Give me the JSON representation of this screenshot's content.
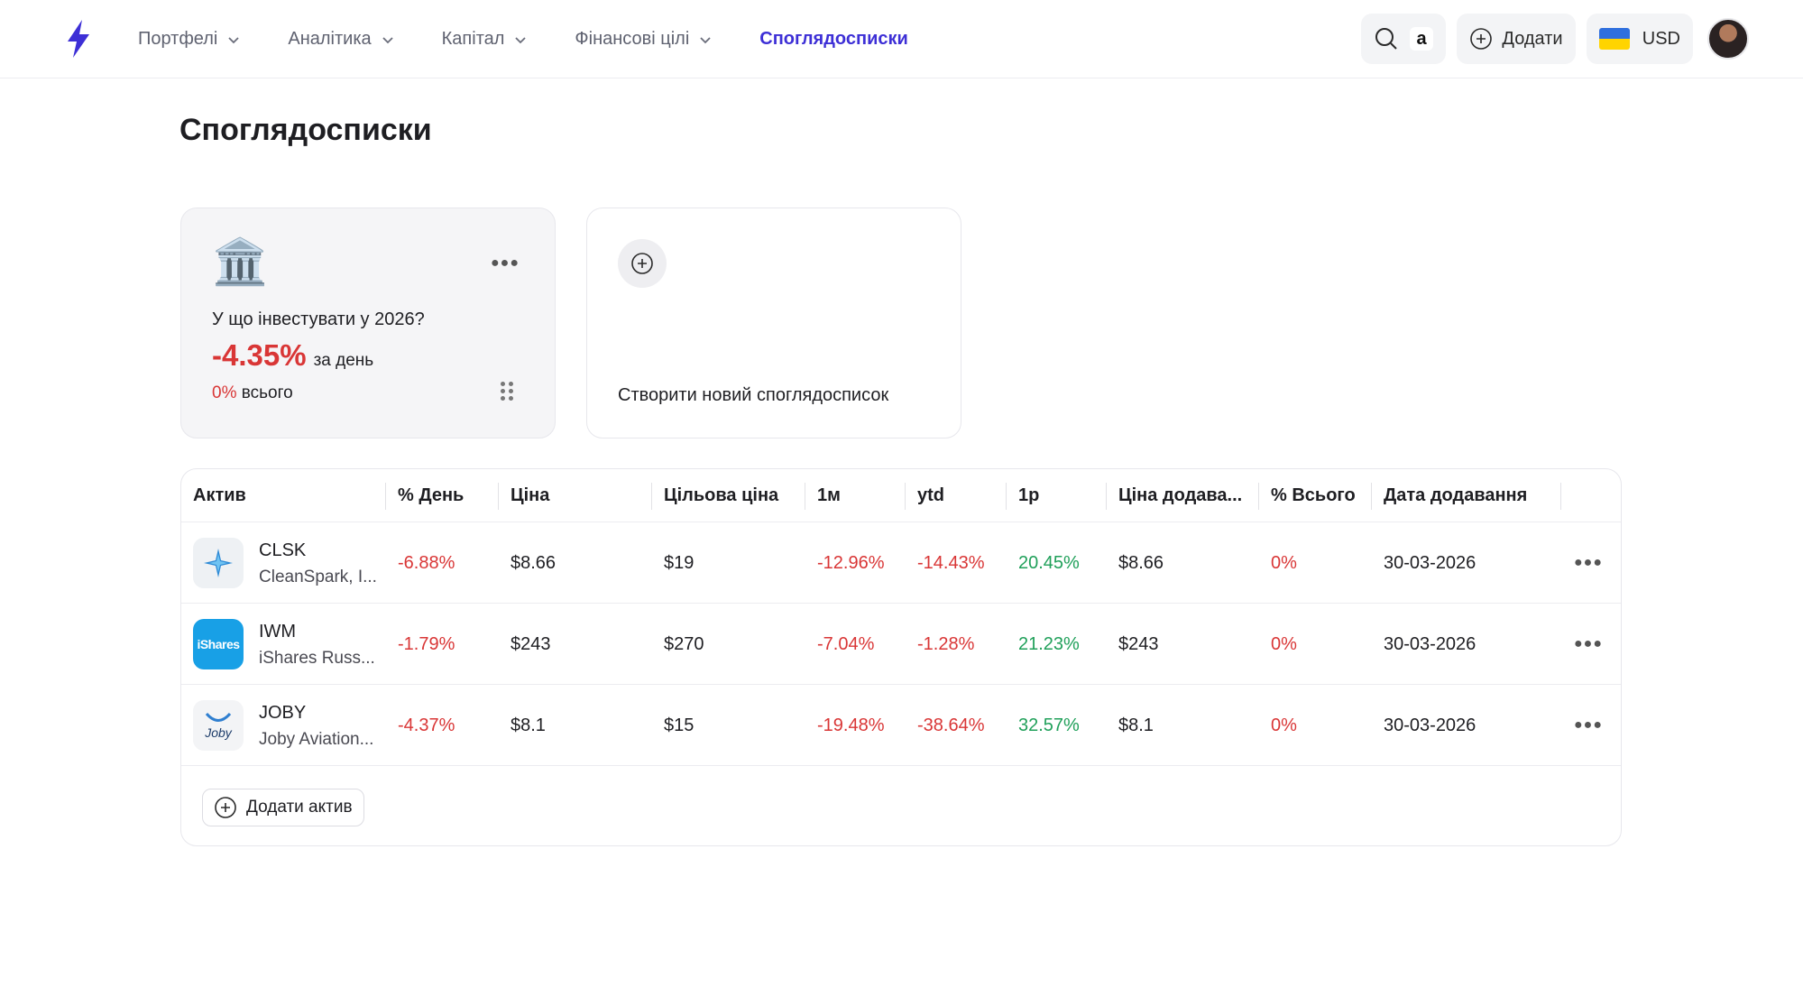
{
  "nav": {
    "items": [
      {
        "label": "Портфелі",
        "dropdown": true
      },
      {
        "label": "Аналітика",
        "dropdown": true
      },
      {
        "label": "Капітал",
        "dropdown": true
      },
      {
        "label": "Фінансові цілі",
        "dropdown": true
      },
      {
        "label": "Споглядосписки",
        "active": true
      }
    ],
    "search_icon": "search-icon",
    "amazon_badge": "a",
    "add_label": "Додати",
    "currency": "USD",
    "accent_color": "#3d2fd6"
  },
  "page": {
    "title": "Споглядосписки"
  },
  "watchlist_card": {
    "icon": "bank-building-icon",
    "icon_glyph": "🏛️",
    "title": "У що інвестувати у 2026?",
    "day_change": "-4.35%",
    "day_label": "за день",
    "total_change": "0%",
    "total_label": "всього"
  },
  "new_card": {
    "label": "Створити новий споглядосписок"
  },
  "table": {
    "columns": [
      "Актив",
      "% День",
      "Ціна",
      "Цільова ціна",
      "1м",
      "ytd",
      "1р",
      "Ціна додава...",
      "% Всього",
      "Дата додавання"
    ],
    "rows": [
      {
        "ticker": "CLSK",
        "name": "CleanSpark, I...",
        "logo_text": "",
        "day": "-6.88%",
        "price": "$8.66",
        "target": "$19",
        "m1": "-12.96%",
        "ytd": "-14.43%",
        "y1": "20.45%",
        "added_price": "$8.66",
        "total": "0%",
        "date": "30-03-2026"
      },
      {
        "ticker": "IWM",
        "name": "iShares Russ...",
        "logo_text": "iShares",
        "day": "-1.79%",
        "price": "$243",
        "target": "$270",
        "m1": "-7.04%",
        "ytd": "-1.28%",
        "y1": "21.23%",
        "added_price": "$243",
        "total": "0%",
        "date": "30-03-2026"
      },
      {
        "ticker": "JOBY",
        "name": "Joby Aviation...",
        "logo_text": "Joby",
        "day": "-4.37%",
        "price": "$8.1",
        "target": "$15",
        "m1": "-19.48%",
        "ytd": "-38.64%",
        "y1": "32.57%",
        "added_price": "$8.1",
        "total": "0%",
        "date": "30-03-2026"
      }
    ],
    "add_asset_label": "Додати актив"
  }
}
